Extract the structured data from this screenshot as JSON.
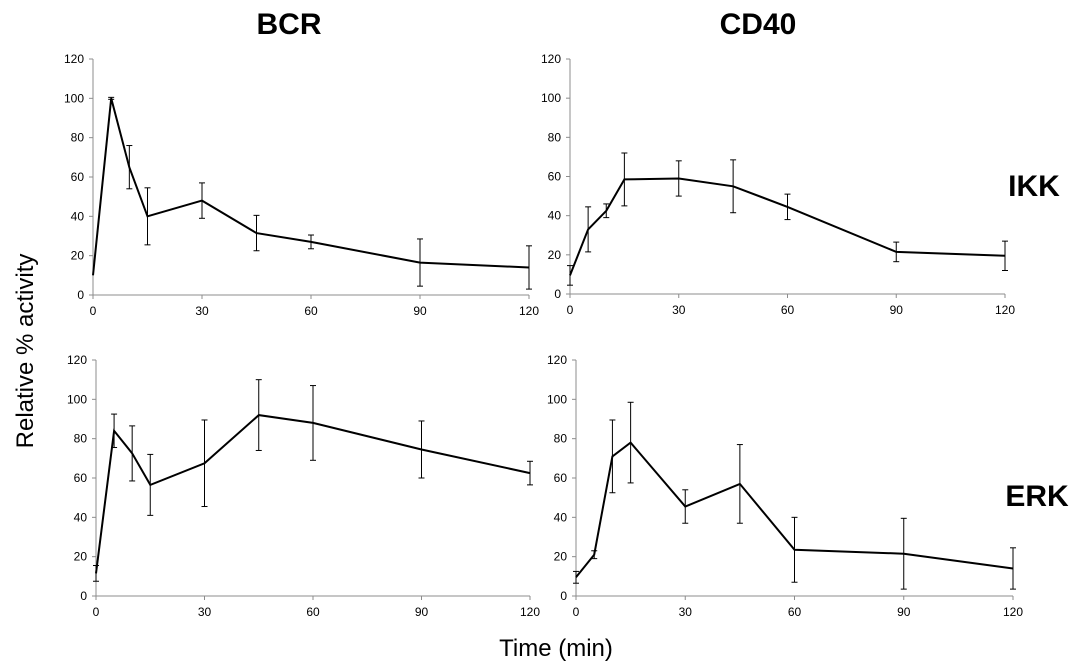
{
  "figure": {
    "ylabel": "Relative % activity",
    "xlabel": "Time (min)",
    "column_titles": [
      "BCR",
      "CD40"
    ],
    "row_labels": [
      "IKK",
      "ERK"
    ]
  },
  "chart_data": [
    {
      "type": "line",
      "panel": "BCR / IKK",
      "x": [
        0,
        5,
        10,
        15,
        30,
        45,
        60,
        90,
        120
      ],
      "y": [
        10,
        100,
        65,
        40,
        48,
        31.5,
        27,
        16.5,
        14
      ],
      "err": [
        0,
        0.5,
        11,
        14.5,
        9,
        9,
        3.5,
        12,
        11
      ],
      "xticks": [
        0,
        30,
        60,
        90,
        120
      ],
      "yticks": [
        0,
        20,
        40,
        60,
        80,
        100,
        120
      ],
      "xlim": [
        0,
        120
      ],
      "ylim": [
        0,
        120
      ]
    },
    {
      "type": "line",
      "panel": "CD40 / IKK",
      "x": [
        0,
        5,
        10,
        15,
        30,
        45,
        60,
        90,
        120
      ],
      "y": [
        9.5,
        33,
        42.5,
        58.5,
        59,
        55,
        44.5,
        21.5,
        19.5
      ],
      "err": [
        5,
        11.5,
        3.5,
        13.5,
        9,
        13.5,
        6.5,
        5,
        7.5
      ],
      "xticks": [
        0,
        30,
        60,
        90,
        120
      ],
      "yticks": [
        0,
        20,
        40,
        60,
        80,
        100,
        120
      ],
      "xlim": [
        0,
        120
      ],
      "ylim": [
        0,
        120
      ]
    },
    {
      "type": "line",
      "panel": "BCR / ERK",
      "x": [
        0,
        5,
        10,
        15,
        30,
        45,
        60,
        90,
        120
      ],
      "y": [
        11.5,
        84,
        72.5,
        56.5,
        67.5,
        92,
        88,
        74.5,
        62.5
      ],
      "err": [
        4,
        8.5,
        14,
        15.5,
        22,
        18,
        19,
        14.5,
        6
      ],
      "xticks": [
        0,
        30,
        60,
        90,
        120
      ],
      "yticks": [
        0,
        20,
        40,
        60,
        80,
        100,
        120
      ],
      "xlim": [
        0,
        120
      ],
      "ylim": [
        0,
        120
      ]
    },
    {
      "type": "line",
      "panel": "CD40 / ERK",
      "x": [
        0,
        5,
        10,
        15,
        30,
        45,
        60,
        90,
        120
      ],
      "y": [
        9.5,
        21,
        71,
        78,
        45.5,
        57,
        23.5,
        21.5,
        14
      ],
      "err": [
        3,
        2,
        18.5,
        20.5,
        8.5,
        20,
        16.5,
        18,
        10.5
      ],
      "xticks": [
        0,
        30,
        60,
        90,
        120
      ],
      "yticks": [
        0,
        20,
        40,
        60,
        80,
        100,
        120
      ],
      "xlim": [
        0,
        120
      ],
      "ylim": [
        0,
        120
      ]
    }
  ]
}
